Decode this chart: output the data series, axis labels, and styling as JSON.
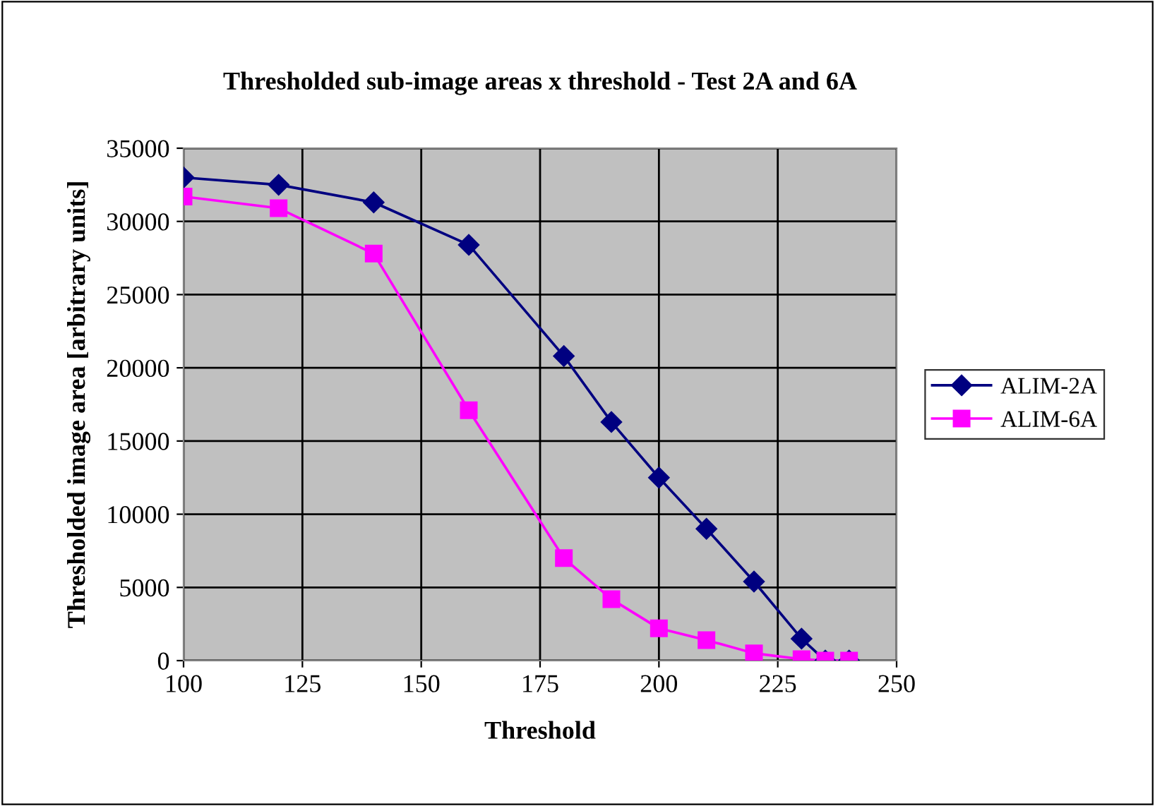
{
  "chart_data": {
    "type": "line",
    "title": "Thresholded sub-image areas x threshold - Test 2A and 6A",
    "xlabel": "Threshold",
    "ylabel": "Thresholded image area [arbitrary units]",
    "series": [
      {
        "name": "ALIM-2A",
        "color": "#000080",
        "marker": "diamond",
        "x": [
          100,
          120,
          140,
          160,
          180,
          190,
          200,
          210,
          220,
          230,
          235,
          240
        ],
        "values": [
          33000,
          32500,
          31300,
          28400,
          20800,
          16300,
          12500,
          9000,
          5400,
          1500,
          0,
          0
        ]
      },
      {
        "name": "ALIM-6A",
        "color": "#ff00ff",
        "marker": "square",
        "x": [
          100,
          120,
          140,
          160,
          180,
          190,
          200,
          210,
          220,
          230,
          235,
          240
        ],
        "values": [
          31700,
          30900,
          27800,
          17100,
          7000,
          4200,
          2200,
          1400,
          500,
          100,
          0,
          0
        ]
      }
    ],
    "xlim": [
      100,
      250
    ],
    "xticks": [
      100,
      125,
      150,
      175,
      200,
      225,
      250
    ],
    "ylim": [
      0,
      35000
    ],
    "yticks": [
      0,
      5000,
      10000,
      15000,
      20000,
      25000,
      30000,
      35000
    ],
    "grid": true,
    "legend": "right",
    "line_style": "solid"
  }
}
